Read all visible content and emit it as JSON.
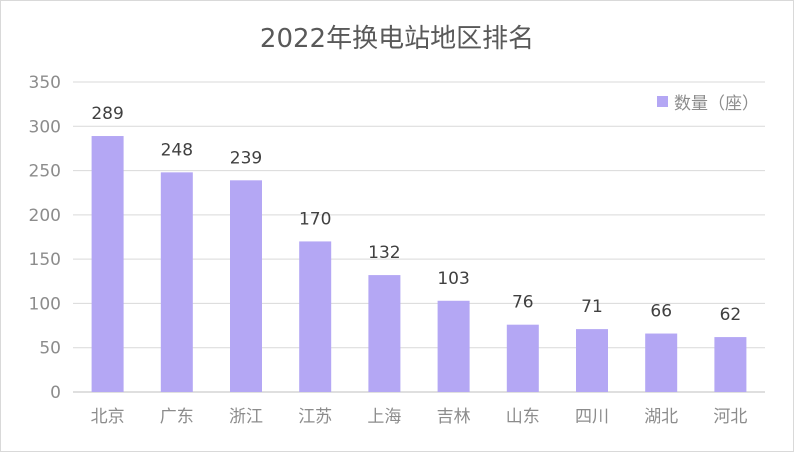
{
  "chart_data": {
    "type": "bar",
    "title": "2022年换电站地区排名",
    "categories": [
      "北京",
      "广东",
      "浙江",
      "江苏",
      "上海",
      "吉林",
      "山东",
      "四川",
      "湖北",
      "河北"
    ],
    "series": [
      {
        "name": "数量（座）",
        "values": [
          289,
          248,
          239,
          170,
          132,
          103,
          76,
          71,
          66,
          62
        ],
        "color": "#b4a7f4"
      }
    ],
    "ylim": [
      0,
      350
    ],
    "yticks": [
      0,
      50,
      100,
      150,
      200,
      250,
      300,
      350
    ],
    "grid": true,
    "legend_position": "top-right",
    "data_labels": true
  }
}
